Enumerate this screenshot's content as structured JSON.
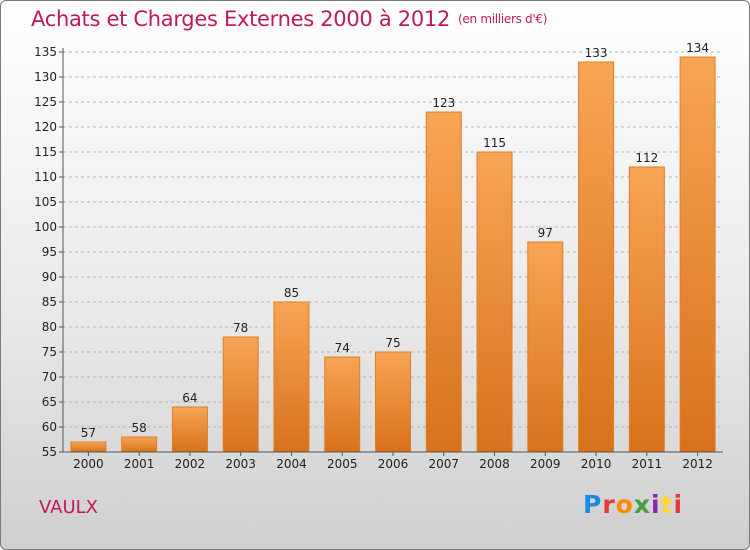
{
  "header": {
    "title": "Achats et Charges Externes 2000 à 2012",
    "unit": "(en milliers d'€)"
  },
  "footer": {
    "place": "VAULX",
    "brand": "Proxiti"
  },
  "colors": {
    "title": "#c2185b",
    "bar_top": "#f7a555",
    "bar_bottom": "#d8711b",
    "grid": "#b5b5b5"
  },
  "chart_data": {
    "type": "bar",
    "title": "Achats et Charges Externes 2000 à 2012",
    "subtitle": "(en milliers d'€)",
    "xlabel": "",
    "ylabel": "",
    "categories": [
      "2000",
      "2001",
      "2002",
      "2003",
      "2004",
      "2005",
      "2006",
      "2007",
      "2008",
      "2009",
      "2010",
      "2011",
      "2012"
    ],
    "values": [
      57,
      58,
      64,
      78,
      85,
      74,
      75,
      123,
      115,
      97,
      133,
      112,
      134
    ],
    "ylim": [
      55,
      135
    ],
    "yticks": [
      55,
      60,
      65,
      70,
      75,
      80,
      85,
      90,
      95,
      100,
      105,
      110,
      115,
      120,
      125,
      130,
      135
    ],
    "grid": "horizontal dashed",
    "data_labels": true
  }
}
